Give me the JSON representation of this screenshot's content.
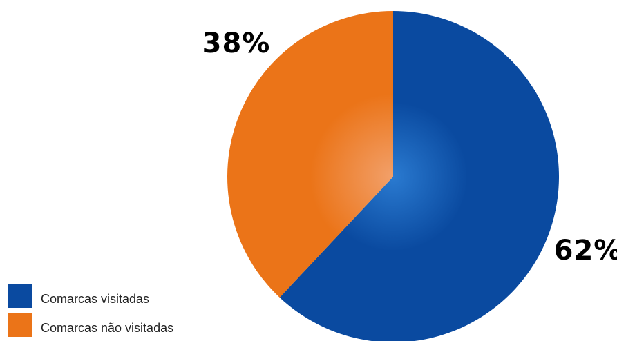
{
  "chart_data": {
    "type": "pie",
    "slices": [
      {
        "name": "Comarcas visitadas",
        "value": 62,
        "label": "62%",
        "color": "#0a4aa0",
        "color_light": "#2a7ad0"
      },
      {
        "name": "Comarcas não visitadas",
        "value": 38,
        "label": "38%",
        "color": "#eb7418",
        "color_light": "#f2a06a"
      }
    ],
    "legend_position": "bottom-left"
  },
  "legend": {
    "items": [
      {
        "label": "Comarcas visitadas",
        "color": "#0a4aa0"
      },
      {
        "label": "Comarcas não visitadas",
        "color": "#eb7418"
      }
    ]
  }
}
